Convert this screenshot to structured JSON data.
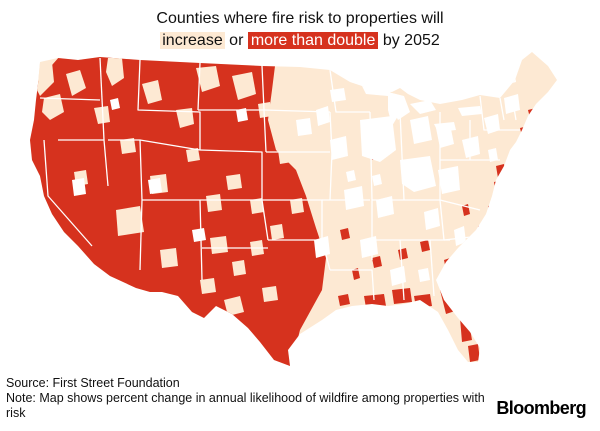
{
  "title": {
    "line1": "Counties where fire risk to properties will",
    "increase": "increase",
    "or": " or ",
    "double": "more than double",
    "suffix": " by 2052"
  },
  "colors": {
    "increase": "#fde9d3",
    "double": "#d6321e",
    "no_change": "#ffffff",
    "border": "#ffffff"
  },
  "source": "Source: First Street Foundation",
  "note": "Note: Map shows percent change in annual likelihood of wildfire among properties with risk",
  "logo": "Bloomberg"
}
